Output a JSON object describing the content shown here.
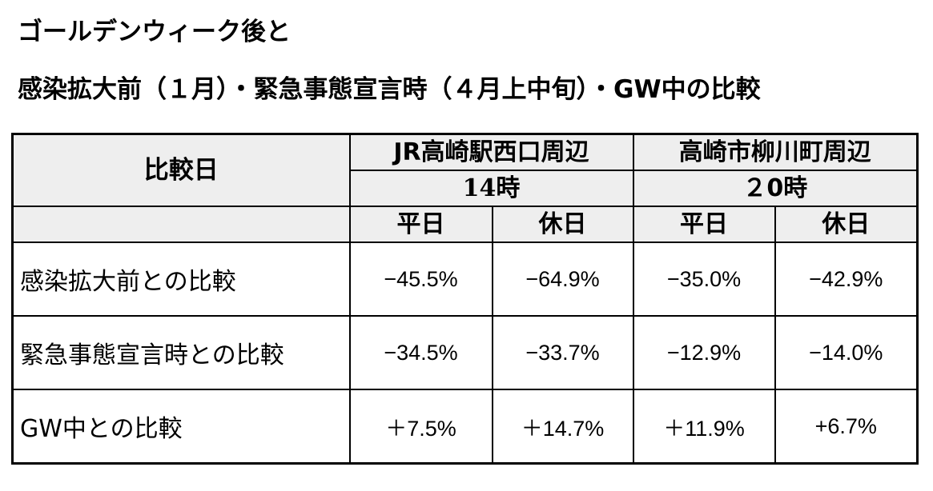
{
  "title": {
    "line1": "ゴールデンウィーク後と",
    "line2": "感染拡大前（１月）・緊急事態宣言時（４月上中旬）・GW中の比較"
  },
  "table": {
    "corner_header": "比較日",
    "locations": [
      {
        "name": "JR高崎駅西口周辺",
        "time": "14時"
      },
      {
        "name": "高崎市柳川町周辺",
        "time": "２0時"
      }
    ],
    "day_types": [
      "平日",
      "休日",
      "平日",
      "休日"
    ],
    "rows": [
      {
        "label": "感染拡大前との比較",
        "values": [
          "−45.5%",
          "−64.9%",
          "−35.0%",
          "−42.9%"
        ]
      },
      {
        "label": "緊急事態宣言時との比較",
        "values": [
          "−34.5%",
          "−33.7%",
          "−12.9%",
          "−14.0%"
        ]
      },
      {
        "label": "GW中との比較",
        "values": [
          "＋7.5%",
          "＋14.7%",
          "＋11.9%",
          "+6.7%"
        ]
      }
    ]
  }
}
